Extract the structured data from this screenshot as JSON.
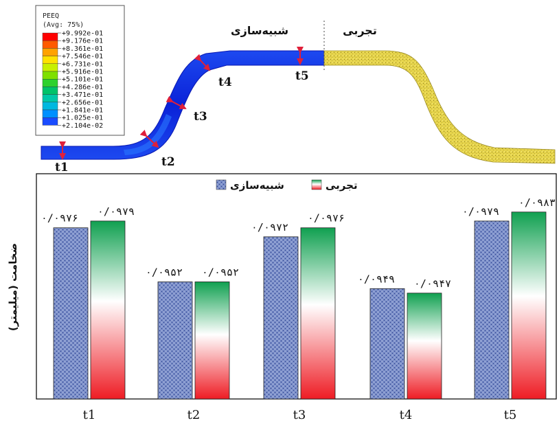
{
  "figure": {
    "contour_legend": {
      "title": "PEEQ",
      "subtitle": "(Avg: 75%)",
      "levels": [
        "+9.992e-01",
        "+9.176e-01",
        "+8.361e-01",
        "+7.546e-01",
        "+6.731e-01",
        "+5.916e-01",
        "+5.101e-01",
        "+4.286e-01",
        "+3.471e-01",
        "+2.656e-01",
        "+1.841e-01",
        "+1.025e-01",
        "+2.104e-02"
      ],
      "colors": [
        "#ff0000",
        "#ff5a00",
        "#ffa200",
        "#ffe100",
        "#c8f000",
        "#7fe000",
        "#2ed12e",
        "#00c36a",
        "#00c8a8",
        "#00b8e0",
        "#0090ff",
        "#1a4cff",
        "#0a18e0"
      ]
    },
    "simulation_label": "شبیه‌سازی",
    "experiment_label": "تجربی",
    "thickness_points": [
      "t1",
      "t2",
      "t3",
      "t4",
      "t5"
    ],
    "colors": {
      "simulated_part": "#1233d8",
      "experimental_part": "#e2d24a",
      "measure_arrow": "#e0203a"
    }
  },
  "chart_data": {
    "type": "bar",
    "categories": [
      "t1",
      "t2",
      "t3",
      "t4",
      "t5"
    ],
    "series": [
      {
        "name": "شبیه‌سازی",
        "values": [
          0.0976,
          0.0952,
          0.0972,
          0.0949,
          0.0979
        ],
        "labels": [
          "۰/۰۹۷۶",
          "۰/۰۹۵۲",
          "۰/۰۹۷۲",
          "۰/۰۹۴۹",
          "۰/۰۹۷۹"
        ]
      },
      {
        "name": "تجربی",
        "values": [
          0.0979,
          0.0952,
          0.0976,
          0.0947,
          0.0983
        ],
        "labels": [
          "۰/۰۹۷۹",
          "۰/۰۹۵۲",
          "۰/۰۹۷۶",
          "۰/۰۹۴۷",
          "۰/۰۹۸۳"
        ]
      }
    ],
    "ylabel": "ضخامت (میلیمتر)",
    "ylim": [
      0.09,
      0.1
    ],
    "legend_position": "top-center",
    "colors": {
      "simulation": "#4d68b0",
      "experiment_top": "#10a050",
      "experiment_bottom": "#ee1c24"
    }
  }
}
